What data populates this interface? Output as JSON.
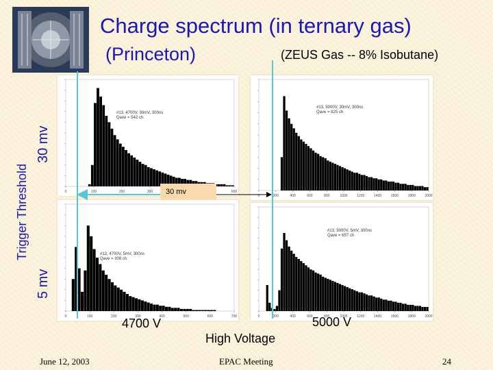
{
  "slide": {
    "title": "Charge spectrum (in ternary gas)",
    "subtitle_left": "(Princeton)",
    "subtitle_right": "(ZEUS Gas -- 8% Isobutane)",
    "y_group_label": "Trigger  Threshold",
    "row_label_top": "30 mv",
    "row_label_bottom": "5 mv",
    "center_marker": "30 mv",
    "col_label_left": "4700 V",
    "col_label_right": "5000 V",
    "x_axis_label": "High Voltage",
    "footer_date": "June 12, 2003",
    "footer_meeting": "EPAC  Meeting",
    "footer_page": "24"
  },
  "colors": {
    "title": "#1a17b5",
    "bars": "#000000",
    "guide_lines": "#52c9d6",
    "marker_box": "#fcd8ae"
  },
  "chart_data": [
    {
      "type": "bar",
      "label": "4700 V, 30 mv",
      "info": [
        "#13, 4700V, 30mV, 300ns",
        "Qave = 542 ch."
      ],
      "x_ticks": [
        "0",
        "100",
        "200",
        "300",
        "400",
        "500",
        "600"
      ],
      "xlim": [
        0,
        600
      ],
      "values": [
        0,
        0,
        0,
        0,
        0,
        0,
        0,
        0,
        2,
        20,
        78,
        92,
        84,
        76,
        66,
        60,
        54,
        48,
        44,
        40,
        37,
        34,
        31,
        29,
        27,
        25,
        23,
        21,
        20,
        18,
        17,
        16,
        15,
        14,
        13,
        12,
        11,
        10,
        9,
        8,
        8,
        7,
        7,
        6,
        6,
        5,
        5,
        4,
        4,
        4,
        3,
        3,
        3,
        2,
        2,
        2,
        2,
        1,
        1,
        1
      ]
    },
    {
      "type": "bar",
      "label": "5000 V, 30 mv",
      "info": [
        "#13, 5000V, 30mV, 300ns",
        "Qave = 825 ch"
      ],
      "x_ticks": [
        "0",
        "200",
        "400",
        "600",
        "800",
        "1000",
        "1200",
        "1400",
        "1600",
        "1800",
        "2000"
      ],
      "xlim": [
        0,
        2000
      ],
      "values": [
        0,
        0,
        0,
        0,
        0,
        0,
        0,
        0,
        0,
        30,
        85,
        72,
        65,
        60,
        56,
        52,
        49,
        46,
        44,
        42,
        40,
        38,
        36,
        34,
        33,
        31,
        30,
        29,
        27,
        26,
        25,
        24,
        23,
        22,
        21,
        20,
        19,
        18,
        17,
        16,
        16,
        15,
        14,
        14,
        13,
        12,
        12,
        11,
        11,
        10,
        10,
        9,
        9,
        8,
        8,
        8,
        7,
        7,
        6,
        6,
        6,
        5,
        5,
        5,
        4,
        4,
        4,
        4,
        3,
        3
      ]
    },
    {
      "type": "bar",
      "label": "4700 V, 5 mv",
      "info": [
        "#13, 4700V, 5mV, 300ns",
        "Qave = 308 ch."
      ],
      "x_ticks": [
        "0",
        "100",
        "200",
        "300",
        "400",
        "500",
        "600",
        "700"
      ],
      "xlim": [
        0,
        700
      ],
      "values": [
        0,
        0,
        30,
        60,
        40,
        18,
        38,
        80,
        70,
        58,
        50,
        44,
        38,
        34,
        30,
        27,
        24,
        22,
        20,
        18,
        16,
        14,
        13,
        12,
        11,
        10,
        9,
        8,
        7,
        6,
        6,
        5,
        5,
        4,
        4,
        3,
        3,
        3,
        2,
        2,
        2,
        2,
        1,
        1,
        1,
        1,
        1,
        1,
        1,
        1,
        0,
        0,
        0,
        0,
        0,
        0
      ]
    },
    {
      "type": "bar",
      "label": "5000 V, 5 mv",
      "info": [
        "#13, 5000V, 5mV, 300ns",
        "Qave = 657 ch"
      ],
      "x_ticks": [
        "0",
        "200",
        "400",
        "600",
        "800",
        "1000",
        "1200",
        "1400",
        "1600",
        "1800",
        "2000"
      ],
      "xlim": [
        0,
        2000
      ],
      "values": [
        0,
        0,
        0,
        25,
        8,
        3,
        2,
        5,
        20,
        60,
        75,
        68,
        62,
        58,
        55,
        52,
        50,
        48,
        46,
        44,
        42,
        40,
        39,
        37,
        36,
        35,
        33,
        32,
        31,
        30,
        29,
        28,
        27,
        26,
        25,
        24,
        23,
        22,
        21,
        20,
        19,
        18,
        18,
        17,
        16,
        15,
        15,
        14,
        13,
        13,
        12,
        11,
        11,
        10,
        10,
        9,
        9,
        8,
        8,
        7,
        7,
        6,
        6,
        6,
        5,
        5,
        5,
        4,
        4,
        4
      ]
    }
  ]
}
